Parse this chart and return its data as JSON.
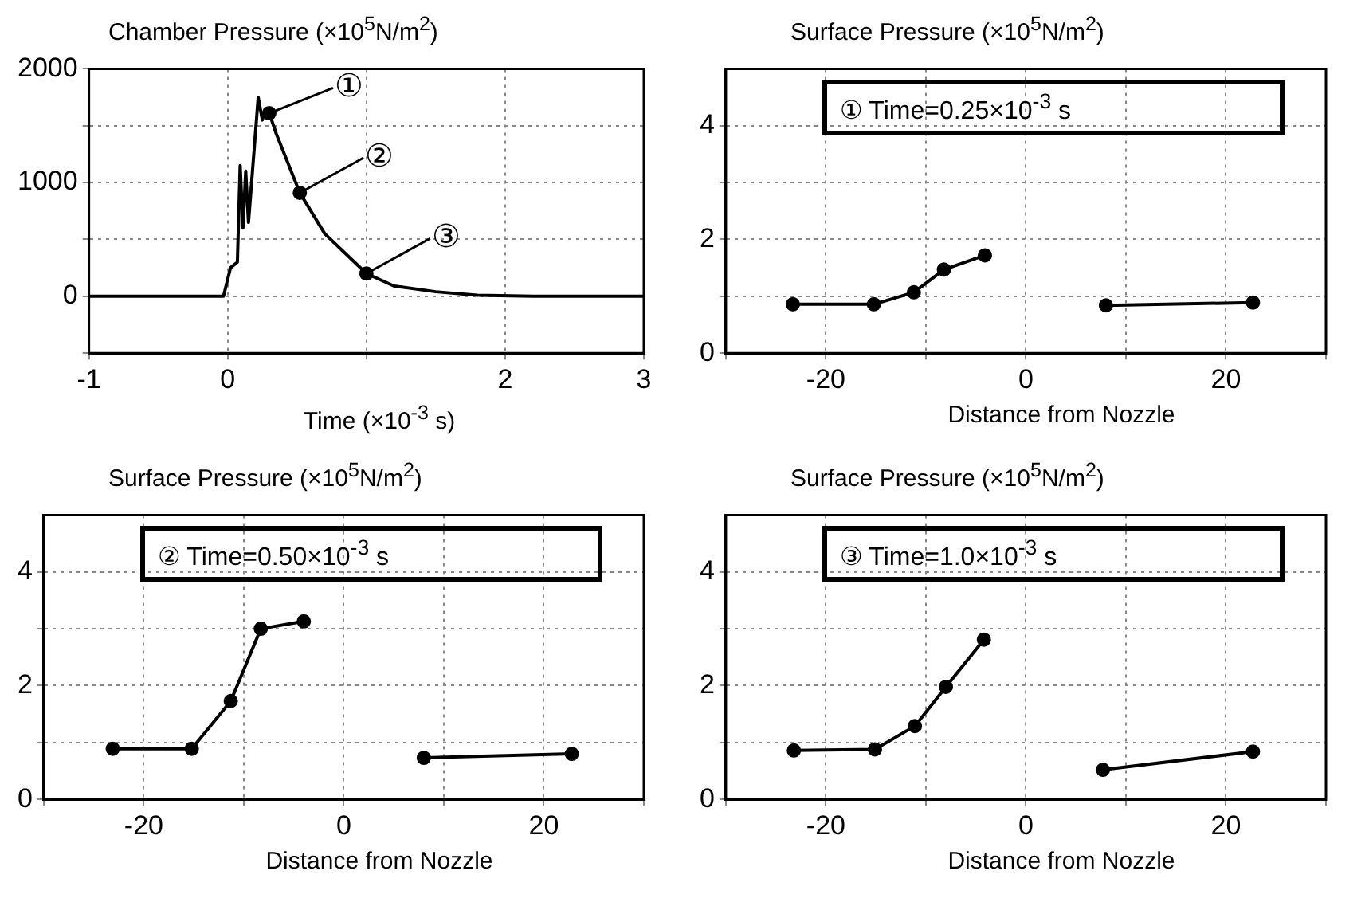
{
  "chart_data": [
    {
      "type": "line",
      "ylabel": "Chamber Pressure  (×10$^{5}$N/m$^{2}$)",
      "xlabel": "Time  (×10$^{-3}$ s)",
      "xlim": [
        -1,
        3
      ],
      "xticks": [
        -1,
        0,
        {
          "value": 1,
          "label": null
        },
        2,
        3
      ],
      "ylim": [
        -500,
        2000
      ],
      "yticks": [
        {
          "value": -500,
          "label": null
        },
        0,
        {
          "value": 500,
          "label": null
        },
        1000,
        {
          "value": 1500,
          "label": null
        },
        2000
      ],
      "grid": true,
      "legend": false,
      "series": [
        {
          "color": "#000000",
          "marker": "none",
          "x": [
            -1,
            -0.03,
            0.02,
            0.07,
            0.09,
            0.11,
            0.13,
            0.15,
            0.22,
            0.25,
            0.27,
            0.3,
            0.35,
            0.52,
            0.7,
            1.0,
            1.2,
            1.5,
            1.8,
            2.2,
            3
          ],
          "values": [
            0,
            0,
            250,
            300,
            1150,
            600,
            1100,
            650,
            1750,
            1550,
            1650,
            1610,
            1430,
            910,
            550,
            200,
            90,
            40,
            10,
            0,
            0
          ]
        },
        {
          "type": "scatter",
          "color": "#000000",
          "marker": "circle",
          "x": [
            0.3,
            0.52,
            1.0
          ],
          "values": [
            1610,
            910,
            200
          ]
        }
      ],
      "annotations": [
        {
          "text": "①",
          "x": 0.3,
          "y": 1610
        },
        {
          "text": "②",
          "x": 0.52,
          "y": 910
        },
        {
          "text": "③",
          "x": 1.0,
          "y": 200
        }
      ]
    },
    {
      "type": "line",
      "ylabel": "Surface Pressure  (×10$^{5}$N/m$^{2}$)",
      "xlabel": "Distance from  Nozzle",
      "xlim": [
        -30,
        30
      ],
      "xticks": [
        {
          "value": -30,
          "label": null
        },
        -20,
        {
          "value": -10,
          "label": null
        },
        0,
        {
          "value": 10,
          "label": null
        },
        20,
        {
          "value": 30,
          "label": null
        }
      ],
      "ylim": [
        0,
        5
      ],
      "yticks": [
        0,
        {
          "value": 1,
          "label": null
        },
        2,
        {
          "value": 3,
          "label": null
        },
        4
      ],
      "grid": true,
      "legend": false,
      "marker": "circle",
      "series": [
        {
          "color": "#000000",
          "x": [
            -23.3,
            -15.2,
            -11.2,
            -8.2,
            -4.1,
            0,
            8,
            22.7
          ],
          "values": [
            0.86,
            0.86,
            1.07,
            1.47,
            1.72,
            null,
            0.84,
            0.89
          ]
        }
      ],
      "annotations": [
        "① Time=0.25×10$^{-3}$ s"
      ]
    },
    {
      "type": "line",
      "ylabel": "Surface Pressure  (×10$^{5}$N/m$^{2}$)",
      "xlabel": "Distance from  Nozzle",
      "xlim": [
        -30,
        30
      ],
      "xticks": [
        {
          "value": -30,
          "label": null
        },
        -20,
        {
          "value": -10,
          "label": null
        },
        0,
        {
          "value": 10,
          "label": null
        },
        20,
        {
          "value": 30,
          "label": null
        }
      ],
      "ylim": [
        0,
        5
      ],
      "yticks": [
        0,
        {
          "value": 1,
          "label": null
        },
        2,
        {
          "value": 3,
          "label": null
        },
        4
      ],
      "grid": true,
      "legend": false,
      "marker": "circle",
      "series": [
        {
          "color": "#000000",
          "x": [
            -23.1,
            -15.2,
            -11.3,
            -8.3,
            -4,
            0,
            8,
            22.8
          ],
          "values": [
            0.89,
            0.89,
            1.73,
            3.0,
            3.13,
            null,
            0.73,
            0.8
          ]
        }
      ],
      "annotations": [
        "② Time=0.50×10$^{-3}$ s"
      ]
    },
    {
      "type": "line",
      "ylabel": "Surface Pressure  (×10$^{5}$N/m$^{2}$)",
      "xlabel": "Distance from  Nozzle",
      "xlim": [
        -30,
        30
      ],
      "xticks": [
        {
          "value": -30,
          "label": null
        },
        -20,
        {
          "value": -10,
          "label": null
        },
        0,
        {
          "value": 10,
          "label": null
        },
        20,
        {
          "value": 30,
          "label": null
        }
      ],
      "ylim": [
        0,
        5
      ],
      "yticks": [
        0,
        {
          "value": 1,
          "label": null
        },
        2,
        {
          "value": 3,
          "label": null
        },
        4
      ],
      "grid": true,
      "legend": false,
      "marker": "circle",
      "series": [
        {
          "color": "#000000",
          "x": [
            -23.2,
            -15.1,
            -11.1,
            -8,
            -4.2,
            0,
            7.7,
            22.7
          ],
          "values": [
            0.86,
            0.88,
            1.29,
            1.98,
            2.81,
            null,
            0.52,
            0.84
          ]
        }
      ],
      "annotations": [
        "③ Time=1.0×10$^{-3}$ s"
      ]
    }
  ]
}
